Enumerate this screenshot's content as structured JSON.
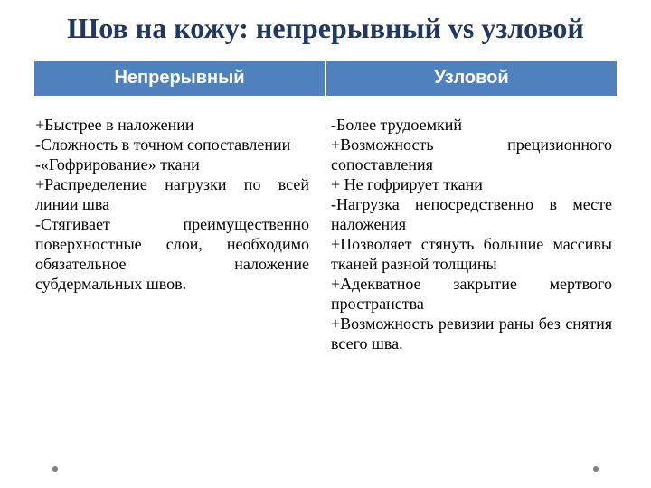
{
  "title": "Шов на кожу: непрерывный vs узловой",
  "columns": {
    "left": {
      "header": "Непрерывный"
    },
    "right": {
      "header": "Узловой"
    }
  },
  "content": {
    "left": "+Быстрее в наложении\n-Сложность в точном сопоставлении\n-«Гофрирование» ткани\n+Распределение нагрузки по всей линии шва\n-Стягивает преимущественно поверхностные слои, необходимо обязательное наложение субдермальных швов.",
    "right": "-Более трудоемкий\n+Возможность прецизионного сопоставления\n+ Не гофрирует ткани\n-Нагрузка непосредственно в месте наложения\n+Позволяет стянуть большие массивы тканей разной толщины\n+Адекватное закрытие мертвого пространства\n+Возможность ревизии раны без снятия всего шва."
  },
  "style": {
    "title_color": "#1f3864",
    "header_bg": "#4f81bd",
    "header_fg": "#ffffff",
    "body_fg": "#000000",
    "background": "#ffffff",
    "dot_color": "#7f7f7f",
    "title_fontsize": 32,
    "header_fontsize": 20,
    "body_fontsize": 18
  }
}
